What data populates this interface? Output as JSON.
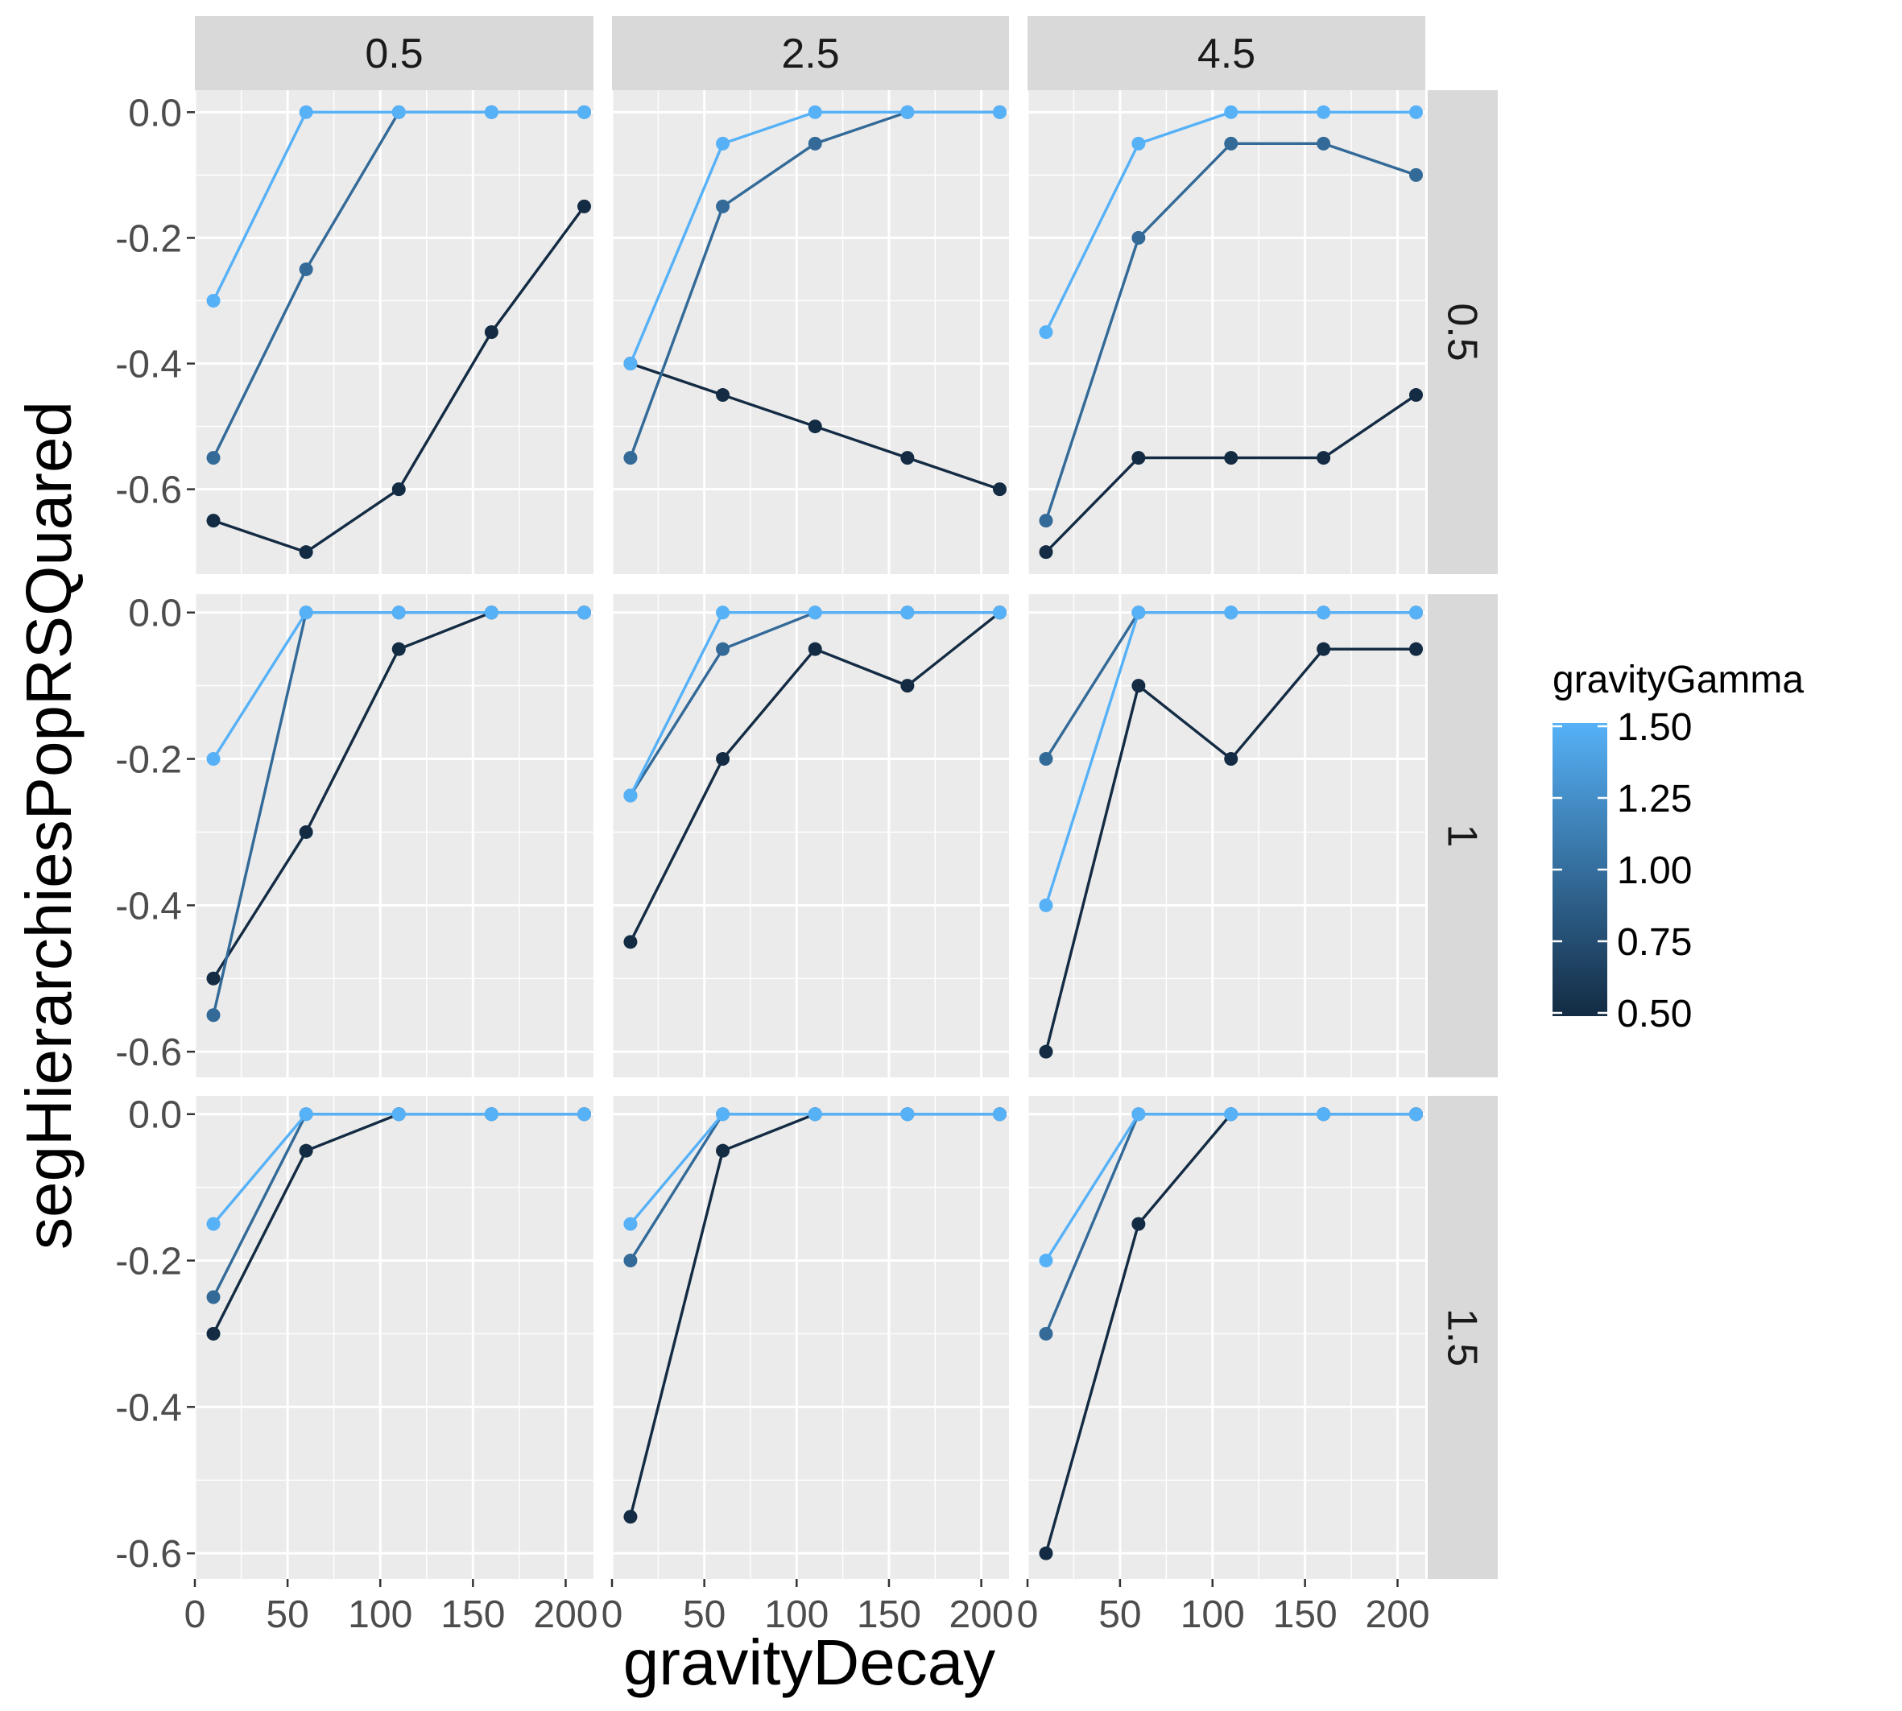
{
  "chart_data": {
    "type": "line",
    "xlabel": "gravityDecay",
    "ylabel": "segHierarchiesPopRSQuared",
    "col_facet_labels": [
      "0.5",
      "2.5",
      "4.5"
    ],
    "row_facet_labels": [
      "0.5",
      "1",
      "1.5"
    ],
    "x_ticks": [
      0,
      50,
      100,
      150,
      200
    ],
    "x_tick_labels": [
      "0",
      "50",
      "100",
      "150",
      "200"
    ],
    "xlim": [
      0,
      215
    ],
    "y_ticks": [
      0,
      -0.2,
      -0.4,
      -0.6
    ],
    "y_tick_labels": [
      "0.0",
      "-0.2",
      "-0.4",
      "-0.6"
    ],
    "row_ylim": [
      [
        -0.735,
        0.035
      ],
      [
        -0.635,
        0.025
      ],
      [
        -0.635,
        0.025
      ]
    ],
    "grid": true,
    "legend": {
      "title": "gravityGamma",
      "type": "colorbar",
      "position": "right",
      "breaks": [
        0.5,
        0.75,
        1.0,
        1.25,
        1.5
      ],
      "labels": [
        "0.50",
        "0.75",
        "1.00",
        "1.25",
        "1.50"
      ],
      "low_color": "#132B43",
      "high_color": "#56B1F7"
    },
    "x": [
      10,
      60,
      110,
      160,
      210
    ],
    "panels": [
      {
        "row": "0.5",
        "col": "0.5",
        "series": [
          {
            "gamma": 0.5,
            "color": "#132B43",
            "values": [
              -0.65,
              -0.7,
              -0.6,
              -0.35,
              -0.15
            ]
          },
          {
            "gamma": 1.0,
            "color": "#336A98",
            "values": [
              -0.55,
              -0.25,
              0.0,
              0.0,
              0.0
            ]
          },
          {
            "gamma": 1.5,
            "color": "#56B1F7",
            "values": [
              -0.3,
              0.0,
              0.0,
              0.0,
              0.0
            ]
          }
        ]
      },
      {
        "row": "0.5",
        "col": "2.5",
        "series": [
          {
            "gamma": 0.5,
            "color": "#132B43",
            "values": [
              -0.4,
              -0.45,
              -0.5,
              -0.55,
              -0.6
            ]
          },
          {
            "gamma": 1.0,
            "color": "#336A98",
            "values": [
              -0.55,
              -0.15,
              -0.05,
              0.0,
              0.0
            ]
          },
          {
            "gamma": 1.5,
            "color": "#56B1F7",
            "values": [
              -0.4,
              -0.05,
              0.0,
              0.0,
              0.0
            ]
          }
        ]
      },
      {
        "row": "0.5",
        "col": "4.5",
        "series": [
          {
            "gamma": 0.5,
            "color": "#132B43",
            "values": [
              -0.7,
              -0.55,
              -0.55,
              -0.55,
              -0.45
            ]
          },
          {
            "gamma": 1.0,
            "color": "#336A98",
            "values": [
              -0.65,
              -0.2,
              -0.05,
              -0.05,
              -0.1
            ]
          },
          {
            "gamma": 1.5,
            "color": "#56B1F7",
            "values": [
              -0.35,
              -0.05,
              0.0,
              0.0,
              0.0
            ]
          }
        ]
      },
      {
        "row": "1",
        "col": "0.5",
        "series": [
          {
            "gamma": 0.5,
            "color": "#132B43",
            "values": [
              -0.5,
              -0.3,
              -0.05,
              0.0,
              0.0
            ]
          },
          {
            "gamma": 1.0,
            "color": "#336A98",
            "values": [
              -0.55,
              0.0,
              0.0,
              0.0,
              0.0
            ]
          },
          {
            "gamma": 1.5,
            "color": "#56B1F7",
            "values": [
              -0.2,
              0.0,
              0.0,
              0.0,
              0.0
            ]
          }
        ]
      },
      {
        "row": "1",
        "col": "2.5",
        "series": [
          {
            "gamma": 0.5,
            "color": "#132B43",
            "values": [
              -0.45,
              -0.2,
              -0.05,
              -0.1,
              0.0
            ]
          },
          {
            "gamma": 1.0,
            "color": "#336A98",
            "values": [
              -0.25,
              -0.05,
              0.0,
              0.0,
              0.0
            ]
          },
          {
            "gamma": 1.5,
            "color": "#56B1F7",
            "values": [
              -0.25,
              0.0,
              0.0,
              0.0,
              0.0
            ]
          }
        ]
      },
      {
        "row": "1",
        "col": "4.5",
        "series": [
          {
            "gamma": 0.5,
            "color": "#132B43",
            "values": [
              -0.6,
              -0.1,
              -0.2,
              -0.05,
              -0.05
            ]
          },
          {
            "gamma": 1.0,
            "color": "#336A98",
            "values": [
              -0.2,
              0.0,
              0.0,
              0.0,
              0.0
            ]
          },
          {
            "gamma": 1.5,
            "color": "#56B1F7",
            "values": [
              -0.4,
              0.0,
              0.0,
              0.0,
              0.0
            ]
          }
        ]
      },
      {
        "row": "1.5",
        "col": "0.5",
        "series": [
          {
            "gamma": 0.5,
            "color": "#132B43",
            "values": [
              -0.3,
              -0.05,
              0.0,
              0.0,
              0.0
            ]
          },
          {
            "gamma": 1.0,
            "color": "#336A98",
            "values": [
              -0.25,
              0.0,
              0.0,
              0.0,
              0.0
            ]
          },
          {
            "gamma": 1.5,
            "color": "#56B1F7",
            "values": [
              -0.15,
              0.0,
              0.0,
              0.0,
              0.0
            ]
          }
        ]
      },
      {
        "row": "1.5",
        "col": "2.5",
        "series": [
          {
            "gamma": 0.5,
            "color": "#132B43",
            "values": [
              -0.55,
              -0.05,
              0.0,
              0.0,
              0.0
            ]
          },
          {
            "gamma": 1.0,
            "color": "#336A98",
            "values": [
              -0.2,
              0.0,
              0.0,
              0.0,
              0.0
            ]
          },
          {
            "gamma": 1.5,
            "color": "#56B1F7",
            "values": [
              -0.15,
              0.0,
              0.0,
              0.0,
              0.0
            ]
          }
        ]
      },
      {
        "row": "1.5",
        "col": "4.5",
        "series": [
          {
            "gamma": 0.5,
            "color": "#132B43",
            "values": [
              -0.6,
              -0.15,
              0.0,
              0.0,
              0.0
            ]
          },
          {
            "gamma": 1.0,
            "color": "#336A98",
            "values": [
              -0.3,
              0.0,
              0.0,
              0.0,
              0.0
            ]
          },
          {
            "gamma": 1.5,
            "color": "#56B1F7",
            "values": [
              -0.2,
              0.0,
              0.0,
              0.0,
              0.0
            ]
          }
        ]
      }
    ]
  }
}
